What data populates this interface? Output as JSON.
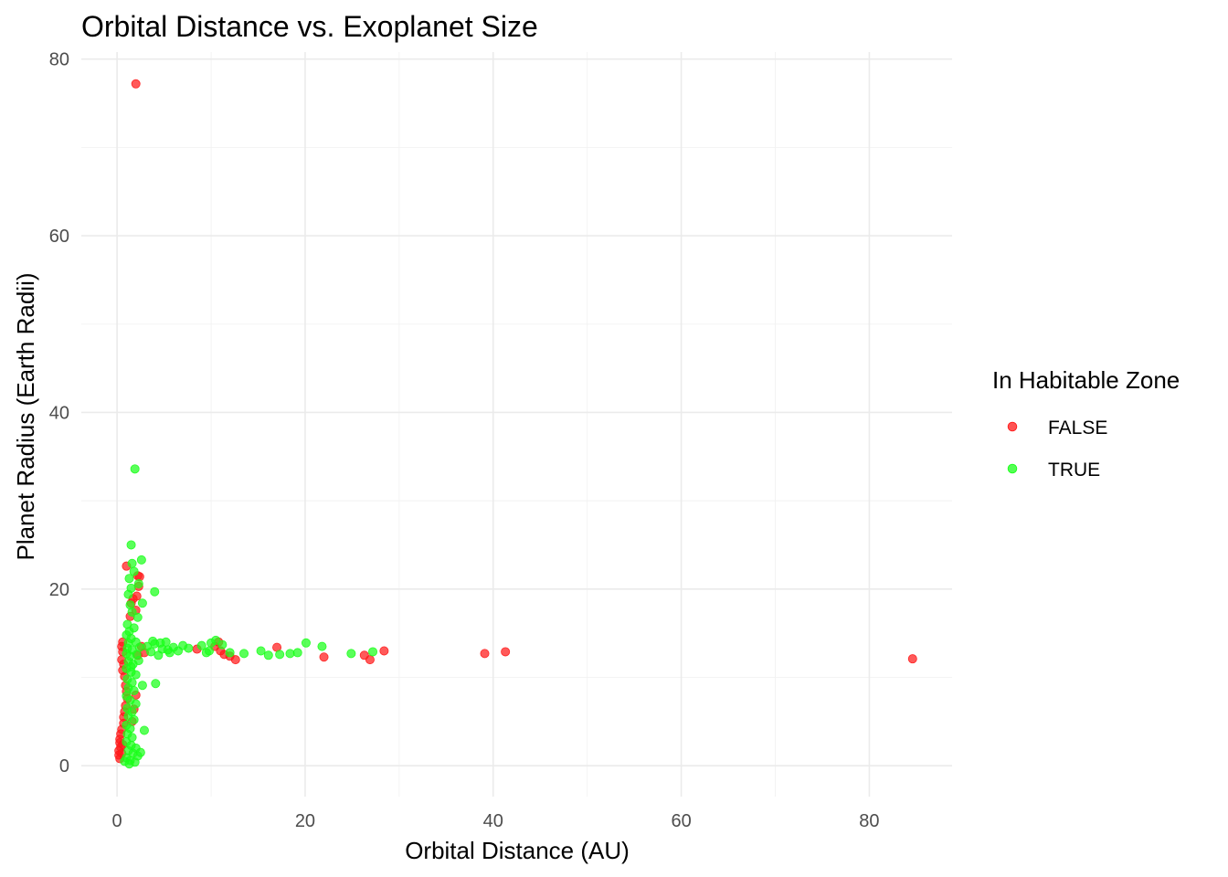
{
  "chart_data": {
    "type": "scatter",
    "title": "Orbital Distance vs. Exoplanet Size",
    "xlabel": "Orbital Distance (AU)",
    "ylabel": "Planet Radius (Earth Radii)",
    "xlim": [
      -3.8,
      88.8
    ],
    "ylim": [
      -3.5,
      80.8
    ],
    "x_ticks": [
      0,
      20,
      40,
      60,
      80
    ],
    "y_ticks": [
      0,
      20,
      40,
      60,
      80
    ],
    "grid": true,
    "legend": {
      "title": "In Habitable Zone",
      "placement": "right",
      "entries": [
        {
          "label": "FALSE",
          "color": "#ff1a1a"
        },
        {
          "label": "TRUE",
          "color": "#1aff1a"
        }
      ]
    },
    "series": [
      {
        "name": "FALSE",
        "color": "#ff1a1a",
        "points": [
          [
            2.0,
            77.2
          ],
          [
            1.0,
            22.6
          ],
          [
            2.2,
            21.5
          ],
          [
            2.4,
            21.4
          ],
          [
            2.3,
            20.3
          ],
          [
            2.1,
            19.2
          ],
          [
            1.7,
            18.9
          ],
          [
            1.5,
            18.4
          ],
          [
            2.0,
            17.6
          ],
          [
            1.4,
            16.9
          ],
          [
            0.6,
            14.0
          ],
          [
            0.5,
            13.5
          ],
          [
            0.6,
            12.9
          ],
          [
            0.5,
            12.0
          ],
          [
            0.7,
            11.5
          ],
          [
            0.6,
            10.8
          ],
          [
            0.8,
            10.1
          ],
          [
            0.9,
            9.1
          ],
          [
            1.0,
            8.4
          ],
          [
            1.1,
            7.6
          ],
          [
            0.9,
            6.8
          ],
          [
            0.8,
            6.1
          ],
          [
            0.7,
            5.5
          ],
          [
            0.7,
            4.8
          ],
          [
            0.5,
            4.1
          ],
          [
            0.4,
            3.6
          ],
          [
            0.3,
            3.0
          ],
          [
            0.3,
            2.6
          ],
          [
            0.4,
            2.1
          ],
          [
            0.2,
            1.7
          ],
          [
            0.2,
            1.2
          ],
          [
            0.3,
            0.8
          ],
          [
            0.5,
            1.4
          ],
          [
            0.6,
            2.4
          ],
          [
            1.6,
            5.0
          ],
          [
            1.8,
            6.4
          ],
          [
            2.0,
            8.0
          ],
          [
            2.2,
            12.5
          ],
          [
            2.6,
            13.5
          ],
          [
            2.9,
            12.8
          ],
          [
            8.5,
            13.2
          ],
          [
            10.4,
            13.5
          ],
          [
            10.8,
            14.0
          ],
          [
            11.0,
            13.0
          ],
          [
            11.4,
            12.6
          ],
          [
            12.0,
            12.4
          ],
          [
            12.6,
            12.0
          ],
          [
            17.0,
            13.4
          ],
          [
            22.0,
            12.3
          ],
          [
            26.3,
            12.5
          ],
          [
            26.9,
            12.0
          ],
          [
            28.4,
            13.0
          ],
          [
            39.1,
            12.7
          ],
          [
            41.3,
            12.9
          ],
          [
            84.6,
            12.1
          ]
        ]
      },
      {
        "name": "TRUE",
        "color": "#1aff1a",
        "points": [
          [
            1.9,
            33.6
          ],
          [
            1.5,
            25.0
          ],
          [
            2.6,
            23.3
          ],
          [
            1.6,
            22.9
          ],
          [
            1.8,
            22.0
          ],
          [
            1.3,
            21.2
          ],
          [
            2.3,
            20.6
          ],
          [
            1.5,
            20.1
          ],
          [
            1.2,
            19.4
          ],
          [
            4.0,
            19.7
          ],
          [
            2.7,
            18.4
          ],
          [
            1.4,
            18.2
          ],
          [
            1.6,
            17.4
          ],
          [
            2.2,
            16.8
          ],
          [
            1.1,
            16.0
          ],
          [
            1.3,
            15.2
          ],
          [
            1.8,
            15.6
          ],
          [
            1.0,
            14.8
          ],
          [
            1.5,
            14.4
          ],
          [
            1.2,
            13.9
          ],
          [
            2.0,
            14.0
          ],
          [
            1.1,
            13.3
          ],
          [
            1.6,
            13.1
          ],
          [
            2.4,
            13.4
          ],
          [
            1.0,
            12.7
          ],
          [
            1.4,
            12.4
          ],
          [
            2.1,
            12.6
          ],
          [
            1.2,
            11.8
          ],
          [
            1.7,
            11.5
          ],
          [
            2.3,
            11.9
          ],
          [
            1.0,
            11.0
          ],
          [
            1.5,
            10.6
          ],
          [
            2.0,
            10.3
          ],
          [
            1.1,
            9.8
          ],
          [
            1.6,
            9.4
          ],
          [
            2.7,
            9.1
          ],
          [
            4.1,
            9.3
          ],
          [
            1.2,
            8.8
          ],
          [
            1.8,
            8.5
          ],
          [
            1.0,
            7.9
          ],
          [
            1.4,
            7.4
          ],
          [
            2.0,
            7.0
          ],
          [
            1.1,
            6.5
          ],
          [
            1.6,
            6.1
          ],
          [
            1.2,
            5.6
          ],
          [
            1.8,
            5.2
          ],
          [
            1.0,
            4.6
          ],
          [
            1.4,
            4.2
          ],
          [
            2.9,
            4.0
          ],
          [
            1.1,
            3.6
          ],
          [
            1.6,
            3.2
          ],
          [
            1.0,
            2.7
          ],
          [
            1.5,
            2.3
          ],
          [
            2.0,
            2.0
          ],
          [
            1.2,
            1.7
          ],
          [
            1.7,
            1.4
          ],
          [
            2.2,
            1.1
          ],
          [
            1.0,
            0.9
          ],
          [
            1.4,
            0.6
          ],
          [
            1.9,
            0.4
          ],
          [
            0.8,
            0.5
          ],
          [
            1.3,
            0.2
          ],
          [
            2.5,
            1.5
          ],
          [
            1.5,
            11.2
          ],
          [
            3.2,
            13.5
          ],
          [
            3.6,
            12.9
          ],
          [
            4.0,
            13.8
          ],
          [
            4.4,
            12.5
          ],
          [
            4.8,
            13.2
          ],
          [
            5.2,
            14.0
          ],
          [
            5.6,
            12.8
          ],
          [
            6.0,
            13.4
          ],
          [
            6.5,
            13.0
          ],
          [
            7.0,
            13.6
          ],
          [
            7.6,
            13.3
          ],
          [
            3.8,
            14.1
          ],
          [
            4.6,
            13.9
          ],
          [
            5.4,
            13.1
          ],
          [
            9.0,
            13.6
          ],
          [
            9.5,
            12.8
          ],
          [
            10.0,
            13.9
          ],
          [
            10.5,
            14.2
          ],
          [
            9.8,
            13.0
          ],
          [
            11.2,
            13.7
          ],
          [
            12.0,
            12.8
          ],
          [
            13.5,
            12.7
          ],
          [
            15.3,
            13.0
          ],
          [
            16.1,
            12.5
          ],
          [
            17.3,
            12.6
          ],
          [
            18.4,
            12.7
          ],
          [
            19.2,
            12.8
          ],
          [
            20.1,
            13.9
          ],
          [
            21.8,
            13.5
          ],
          [
            24.9,
            12.7
          ],
          [
            27.2,
            12.9
          ]
        ]
      }
    ]
  }
}
